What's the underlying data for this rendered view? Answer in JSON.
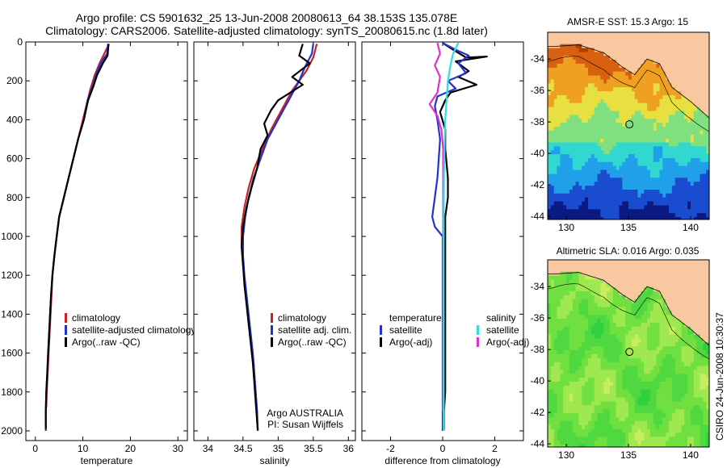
{
  "header": {
    "line1": "Argo profile: CS 5901632_25 13-Jun-2008 20080613_64 38.153S 135.078E",
    "line2": "Climatology: CARS2006. Satellite-adjusted climatology: synTS_20080615.nc (1.8d later)"
  },
  "stamp": "CSIRO 24-Jun-2008 10:30:37",
  "chart_data": [
    {
      "type": "line",
      "xlabel": "temperature",
      "xlim": [
        -2,
        32
      ],
      "ylim": [
        0,
        2050
      ],
      "y_reversed": true,
      "xticks": [
        0,
        10,
        20,
        30
      ],
      "yticks": [
        0,
        200,
        400,
        600,
        800,
        1000,
        1200,
        1400,
        1600,
        1800,
        2000
      ],
      "legend": {
        "placement": "lower-center",
        "entries": [
          {
            "label": "climatology",
            "color": "#cc2222"
          },
          {
            "label": "satellite-adjusted climatology",
            "color": "#2233cc"
          },
          {
            "label": "Argo(..raw -QC)",
            "color": "#000000"
          }
        ]
      },
      "series": [
        {
          "color": "#cc2222",
          "points": [
            [
              15.5,
              10
            ],
            [
              14.5,
              60
            ],
            [
              13.5,
              110
            ],
            [
              12.5,
              170
            ],
            [
              11.5,
              250
            ],
            [
              10.8,
              320
            ],
            [
              10,
              400
            ],
            [
              9,
              500
            ],
            [
              8,
              600
            ],
            [
              7,
              700
            ],
            [
              6,
              800
            ],
            [
              5,
              900
            ],
            [
              4.5,
              1000
            ],
            [
              4,
              1100
            ],
            [
              3.6,
              1200
            ],
            [
              3.4,
              1300
            ],
            [
              3.2,
              1400
            ],
            [
              3,
              1500
            ],
            [
              2.8,
              1600
            ],
            [
              2.6,
              1700
            ],
            [
              2.4,
              1800
            ],
            [
              2.3,
              1880
            ]
          ]
        },
        {
          "color": "#2233cc",
          "points": [
            [
              15.3,
              10
            ],
            [
              15.1,
              60
            ],
            [
              14,
              100
            ],
            [
              13,
              150
            ],
            [
              12,
              230
            ],
            [
              11,
              300
            ],
            [
              10.2,
              400
            ],
            [
              9,
              500
            ],
            [
              8,
              600
            ],
            [
              7,
              700
            ],
            [
              6,
              800
            ],
            [
              5,
              900
            ],
            [
              4.5,
              1000
            ],
            [
              4,
              1100
            ],
            [
              3.6,
              1200
            ],
            [
              3.3,
              1300
            ],
            [
              3.1,
              1400
            ],
            [
              2.9,
              1500
            ],
            [
              2.7,
              1600
            ],
            [
              2.5,
              1700
            ],
            [
              2.3,
              1800
            ],
            [
              2.2,
              1900
            ],
            [
              2.2,
              2000
            ]
          ]
        },
        {
          "color": "#000000",
          "points": [
            [
              15.4,
              10
            ],
            [
              15.2,
              70
            ],
            [
              14.2,
              110
            ],
            [
              13,
              170
            ],
            [
              12.2,
              230
            ],
            [
              11.1,
              300
            ],
            [
              10.2,
              400
            ],
            [
              9,
              500
            ],
            [
              8,
              600
            ],
            [
              7,
              700
            ],
            [
              6,
              800
            ],
            [
              5,
              900
            ],
            [
              4.5,
              1000
            ],
            [
              4,
              1100
            ],
            [
              3.6,
              1200
            ],
            [
              3.3,
              1300
            ],
            [
              3.1,
              1400
            ],
            [
              2.9,
              1500
            ],
            [
              2.7,
              1600
            ],
            [
              2.5,
              1700
            ],
            [
              2.3,
              1800
            ],
            [
              2.2,
              1900
            ],
            [
              2.2,
              1990
            ]
          ]
        }
      ]
    },
    {
      "type": "line",
      "xlabel": "salinity",
      "xlim": [
        33.8,
        36.1
      ],
      "ylim": [
        0,
        2050
      ],
      "y_reversed": true,
      "xticks": [
        34,
        34.5,
        35,
        35.5,
        36
      ],
      "yticks": [
        0,
        200,
        400,
        600,
        800,
        1000,
        1200,
        1400,
        1600,
        1800,
        2000
      ],
      "legend": {
        "placement": "lower-center",
        "entries": [
          {
            "label": "climatology",
            "color": "#cc2222"
          },
          {
            "label": "satellite adj. clim.",
            "color": "#2233cc"
          },
          {
            "label": "Argo(..raw -QC)",
            "color": "#000000"
          }
        ]
      },
      "annotation": [
        "Argo AUSTRALIA",
        "PI: Susan Wijffels"
      ],
      "series": [
        {
          "color": "#cc2222",
          "points": [
            [
              35.55,
              10
            ],
            [
              35.5,
              80
            ],
            [
              35.4,
              150
            ],
            [
              35.2,
              250
            ],
            [
              35.05,
              350
            ],
            [
              34.9,
              450
            ],
            [
              34.78,
              550
            ],
            [
              34.66,
              650
            ],
            [
              34.58,
              750
            ],
            [
              34.52,
              850
            ],
            [
              34.48,
              950
            ],
            [
              34.48,
              1050
            ],
            [
              34.5,
              1150
            ],
            [
              34.53,
              1250
            ],
            [
              34.56,
              1350
            ],
            [
              34.59,
              1450
            ],
            [
              34.62,
              1550
            ],
            [
              34.65,
              1650
            ],
            [
              34.67,
              1750
            ],
            [
              34.69,
              1850
            ],
            [
              34.7,
              1950
            ],
            [
              34.71,
              2000
            ]
          ]
        },
        {
          "color": "#2233cc",
          "points": [
            [
              35.5,
              10
            ],
            [
              35.48,
              60
            ],
            [
              35.38,
              130
            ],
            [
              35.3,
              200
            ],
            [
              35.15,
              300
            ],
            [
              35,
              400
            ],
            [
              34.85,
              500
            ],
            [
              34.75,
              600
            ],
            [
              34.65,
              700
            ],
            [
              34.58,
              800
            ],
            [
              34.53,
              900
            ],
            [
              34.5,
              1000
            ],
            [
              34.5,
              1100
            ],
            [
              34.52,
              1200
            ],
            [
              34.55,
              1300
            ],
            [
              34.58,
              1400
            ],
            [
              34.61,
              1500
            ],
            [
              34.64,
              1600
            ],
            [
              34.66,
              1700
            ],
            [
              34.68,
              1800
            ],
            [
              34.7,
              1900
            ],
            [
              34.71,
              2000
            ]
          ]
        },
        {
          "color": "#000000",
          "points": [
            [
              35.35,
              10
            ],
            [
              35.3,
              70
            ],
            [
              35.45,
              110
            ],
            [
              35.2,
              180
            ],
            [
              35.35,
              220
            ],
            [
              35.0,
              300
            ],
            [
              34.9,
              350
            ],
            [
              34.8,
              420
            ],
            [
              34.85,
              480
            ],
            [
              34.75,
              550
            ],
            [
              34.7,
              650
            ],
            [
              34.62,
              750
            ],
            [
              34.55,
              850
            ],
            [
              34.5,
              950
            ],
            [
              34.48,
              1050
            ],
            [
              34.5,
              1150
            ],
            [
              34.52,
              1250
            ],
            [
              34.55,
              1350
            ],
            [
              34.58,
              1450
            ],
            [
              34.61,
              1550
            ],
            [
              34.64,
              1650
            ],
            [
              34.66,
              1750
            ],
            [
              34.68,
              1850
            ],
            [
              34.7,
              1950
            ],
            [
              34.71,
              1995
            ]
          ]
        }
      ]
    },
    {
      "type": "line",
      "xlabel": "difference from climatology",
      "xlim": [
        -3.1,
        3.1
      ],
      "ylim": [
        0,
        2050
      ],
      "y_reversed": true,
      "xticks": [
        -2,
        0,
        2
      ],
      "yticks": [
        0,
        200,
        400,
        600,
        800,
        1000,
        1200,
        1400,
        1600,
        1800,
        2000
      ],
      "legend": {
        "placement": "lower-center",
        "columns": [
          {
            "header": "temperature",
            "entries": [
              {
                "label": "satellite",
                "color": "#2233cc"
              },
              {
                "label": "Argo(-adj)",
                "color": "#000000"
              }
            ]
          },
          {
            "header": "salinity",
            "entries": [
              {
                "label": "satellite",
                "color": "#33dddd"
              },
              {
                "label": "Argo(-adj)",
                "color": "#dd33cc"
              }
            ]
          }
        ]
      },
      "series": [
        {
          "color": "#000000",
          "points": [
            [
              0,
              5
            ],
            [
              0.4,
              40
            ],
            [
              0.9,
              80
            ],
            [
              1.7,
              75
            ],
            [
              0.5,
              100
            ],
            [
              1.0,
              150
            ],
            [
              0.6,
              180
            ],
            [
              1.3,
              220
            ],
            [
              0.3,
              260
            ],
            [
              0.1,
              300
            ],
            [
              -0.1,
              360
            ],
            [
              0.1,
              450
            ],
            [
              0.1,
              550
            ],
            [
              0.2,
              700
            ],
            [
              0.2,
              800
            ],
            [
              0.1,
              900
            ],
            [
              0.1,
              1000
            ],
            [
              0.1,
              1100
            ],
            [
              0.1,
              1200
            ],
            [
              0.1,
              1300
            ],
            [
              0.1,
              1400
            ],
            [
              0.1,
              1500
            ],
            [
              0.1,
              1600
            ],
            [
              0.1,
              1700
            ],
            [
              0.1,
              1800
            ],
            [
              0.05,
              1900
            ],
            [
              0.05,
              1995
            ]
          ]
        },
        {
          "color": "#2233cc",
          "points": [
            [
              0,
              5
            ],
            [
              0.5,
              40
            ],
            [
              1.0,
              70
            ],
            [
              0.6,
              110
            ],
            [
              0.9,
              160
            ],
            [
              0.2,
              200
            ],
            [
              0.5,
              240
            ],
            [
              -0.2,
              280
            ],
            [
              -0.3,
              330
            ],
            [
              -0.2,
              400
            ],
            [
              -0.1,
              500
            ],
            [
              -0.15,
              600
            ],
            [
              -0.2,
              700
            ],
            [
              -0.3,
              800
            ],
            [
              -0.4,
              900
            ],
            [
              -0.3,
              950
            ],
            [
              0.0,
              1000
            ],
            [
              0.0,
              1100
            ],
            [
              0.0,
              1200
            ],
            [
              0.0,
              1400
            ],
            [
              0.0,
              1600
            ],
            [
              0.0,
              1800
            ],
            [
              0.0,
              2000
            ]
          ]
        },
        {
          "color": "#dd33cc",
          "points": [
            [
              -0.2,
              5
            ],
            [
              -0.1,
              60
            ],
            [
              -0.3,
              120
            ],
            [
              -0.1,
              180
            ],
            [
              -0.2,
              260
            ],
            [
              -0.5,
              320
            ],
            [
              -0.2,
              380
            ],
            [
              -0.05,
              450
            ],
            [
              0.02,
              550
            ],
            [
              0.02,
              800
            ],
            [
              0.02,
              1100
            ],
            [
              0.02,
              1500
            ],
            [
              0.02,
              1900
            ]
          ]
        },
        {
          "color": "#33dddd",
          "points": [
            [
              0.6,
              5
            ],
            [
              0.4,
              60
            ],
            [
              0.3,
              120
            ],
            [
              0.2,
              200
            ],
            [
              0.15,
              300
            ],
            [
              0.1,
              400
            ],
            [
              0.08,
              500
            ],
            [
              0.05,
              700
            ],
            [
              0.04,
              900
            ],
            [
              0.04,
              1100
            ],
            [
              0.04,
              1300
            ],
            [
              0.04,
              1500
            ],
            [
              0.04,
              1700
            ],
            [
              0.04,
              1900
            ],
            [
              0.04,
              2000
            ]
          ]
        }
      ]
    },
    {
      "type": "heatmap",
      "title": "AMSR-E SST: 15.3 Argo: 15",
      "xlim": [
        128.5,
        141.5
      ],
      "ylim": [
        -44.2,
        -32.3
      ],
      "xticks": [
        130,
        135,
        140
      ],
      "yticks": [
        -34,
        -36,
        -38,
        -40,
        -42,
        -44
      ],
      "marker": {
        "lon": 135.078,
        "lat": -38.153
      },
      "colors": [
        "#0a1a80",
        "#1a4ccf",
        "#20a0e8",
        "#30d8d0",
        "#80e080",
        "#e8e040",
        "#f0a020",
        "#d86010",
        "#a84000"
      ]
    },
    {
      "type": "heatmap",
      "title": "Altimetric SLA: 0.016 Argo: 0.035",
      "xlim": [
        128.5,
        141.5
      ],
      "ylim": [
        -44.2,
        -32.3
      ],
      "xticks": [
        130,
        135,
        140
      ],
      "yticks": [
        -34,
        -36,
        -38,
        -40,
        -42,
        -44
      ],
      "marker": {
        "lon": 135.078,
        "lat": -38.153
      },
      "colors": [
        "#30d040",
        "#50d840",
        "#70e040",
        "#a0e850",
        "#c8ee60"
      ]
    }
  ]
}
